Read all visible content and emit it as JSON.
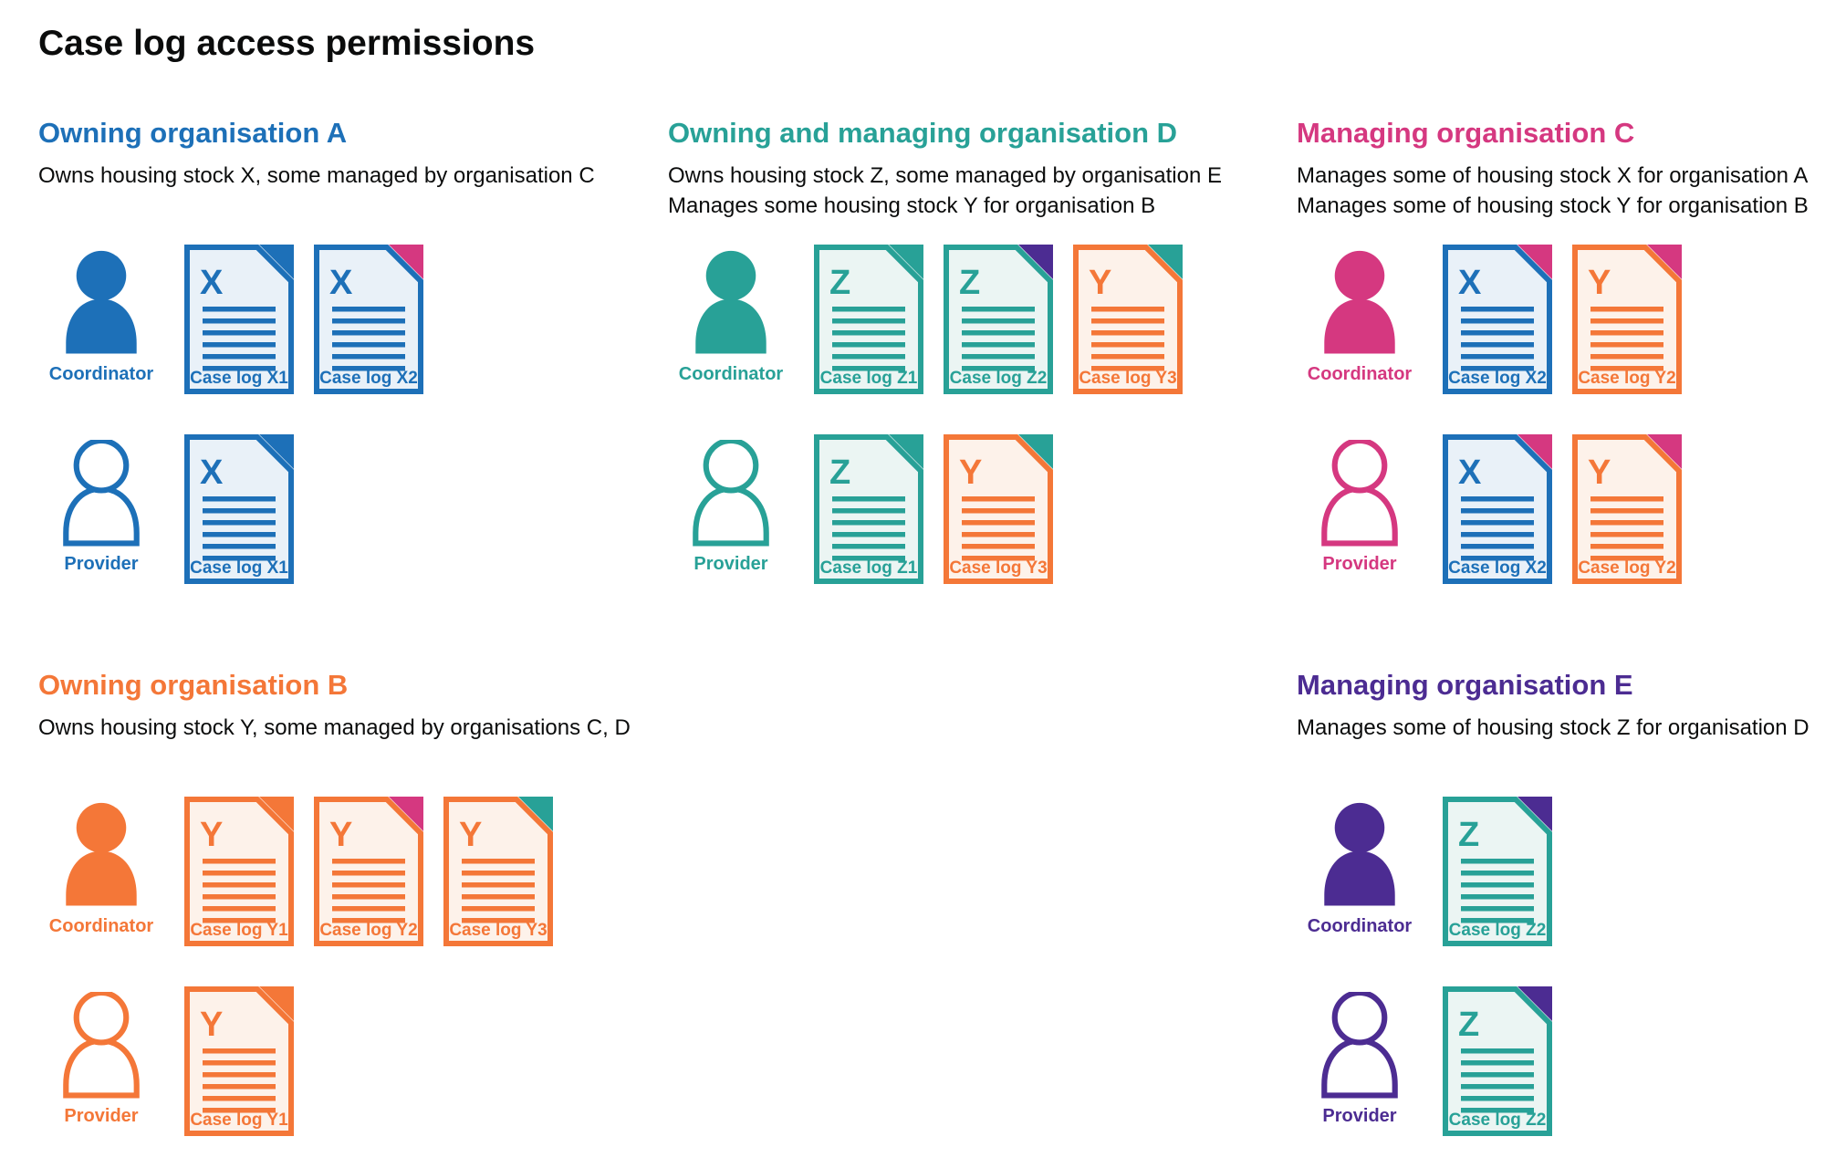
{
  "page": {
    "title": "Case log access permissions"
  },
  "colors": {
    "blue": "#1d70b8",
    "teal": "#28a197",
    "pink": "#d53880",
    "orange": "#f47738",
    "purple": "#4c2c92",
    "text": "#0b0c0c",
    "blue_tint": "#e9f1f8",
    "teal_tint": "#ebf5f3",
    "orange_tint": "#fdf2ea",
    "purple_tint": "#ecebf4"
  },
  "icons": {
    "coordinator": "coordinator-person-icon",
    "provider": "provider-person-icon",
    "document": "case-log-document-icon",
    "folded_corner": "folded-corner-icon"
  },
  "roles": {
    "coordinator": "Coordinator",
    "provider": "Provider"
  },
  "sections": [
    {
      "id": "org-a",
      "heading": "Owning organisation A",
      "accent": "blue",
      "description": [
        "Owns housing stock X, some managed by organisation C"
      ],
      "rows": [
        {
          "role": "coordinator",
          "docs": [
            {
              "letter": "X",
              "label": "Case log X1",
              "doc_color": "blue",
              "flap_color": "blue"
            },
            {
              "letter": "X",
              "label": "Case log X2",
              "doc_color": "blue",
              "flap_color": "pink"
            }
          ]
        },
        {
          "role": "provider",
          "docs": [
            {
              "letter": "X",
              "label": "Case log X1",
              "doc_color": "blue",
              "flap_color": "blue"
            }
          ]
        }
      ]
    },
    {
      "id": "org-d",
      "heading": "Owning and managing organisation D",
      "accent": "teal",
      "description": [
        "Owns housing stock Z, some managed by organisation E",
        "Manages some housing stock Y for organisation B"
      ],
      "rows": [
        {
          "role": "coordinator",
          "docs": [
            {
              "letter": "Z",
              "label": "Case log Z1",
              "doc_color": "teal",
              "flap_color": "teal"
            },
            {
              "letter": "Z",
              "label": "Case log Z2",
              "doc_color": "teal",
              "flap_color": "purple"
            },
            {
              "letter": "Y",
              "label": "Case log Y3",
              "doc_color": "orange",
              "flap_color": "teal"
            }
          ]
        },
        {
          "role": "provider",
          "docs": [
            {
              "letter": "Z",
              "label": "Case log Z1",
              "doc_color": "teal",
              "flap_color": "teal"
            },
            {
              "letter": "Y",
              "label": "Case log Y3",
              "doc_color": "orange",
              "flap_color": "teal"
            }
          ]
        }
      ]
    },
    {
      "id": "org-c",
      "heading": "Managing organisation C",
      "accent": "pink",
      "description": [
        "Manages some of housing stock X for organisation A",
        "Manages some of housing stock Y for organisation B"
      ],
      "rows": [
        {
          "role": "coordinator",
          "docs": [
            {
              "letter": "X",
              "label": "Case log X2",
              "doc_color": "blue",
              "flap_color": "pink"
            },
            {
              "letter": "Y",
              "label": "Case log Y2",
              "doc_color": "orange",
              "flap_color": "pink"
            }
          ]
        },
        {
          "role": "provider",
          "docs": [
            {
              "letter": "X",
              "label": "Case log X2",
              "doc_color": "blue",
              "flap_color": "pink"
            },
            {
              "letter": "Y",
              "label": "Case log Y2",
              "doc_color": "orange",
              "flap_color": "pink"
            }
          ]
        }
      ]
    },
    {
      "id": "org-b",
      "heading": "Owning organisation B",
      "accent": "orange",
      "description": [
        "Owns housing stock Y, some managed by organisations C, D"
      ],
      "rows": [
        {
          "role": "coordinator",
          "docs": [
            {
              "letter": "Y",
              "label": "Case log Y1",
              "doc_color": "orange",
              "flap_color": "orange"
            },
            {
              "letter": "Y",
              "label": "Case log Y2",
              "doc_color": "orange",
              "flap_color": "pink"
            },
            {
              "letter": "Y",
              "label": "Case log Y3",
              "doc_color": "orange",
              "flap_color": "teal"
            }
          ]
        },
        {
          "role": "provider",
          "docs": [
            {
              "letter": "Y",
              "label": "Case log Y1",
              "doc_color": "orange",
              "flap_color": "orange"
            }
          ]
        }
      ]
    },
    {
      "id": "org-e",
      "heading": "Managing organisation E",
      "accent": "purple",
      "description": [
        "Manages some of housing stock Z for organisation D"
      ],
      "rows": [
        {
          "role": "coordinator",
          "docs": [
            {
              "letter": "Z",
              "label": "Case log Z2",
              "doc_color": "teal",
              "flap_color": "purple"
            }
          ]
        },
        {
          "role": "provider",
          "docs": [
            {
              "letter": "Z",
              "label": "Case log Z2",
              "doc_color": "teal",
              "flap_color": "purple"
            }
          ]
        }
      ]
    }
  ]
}
